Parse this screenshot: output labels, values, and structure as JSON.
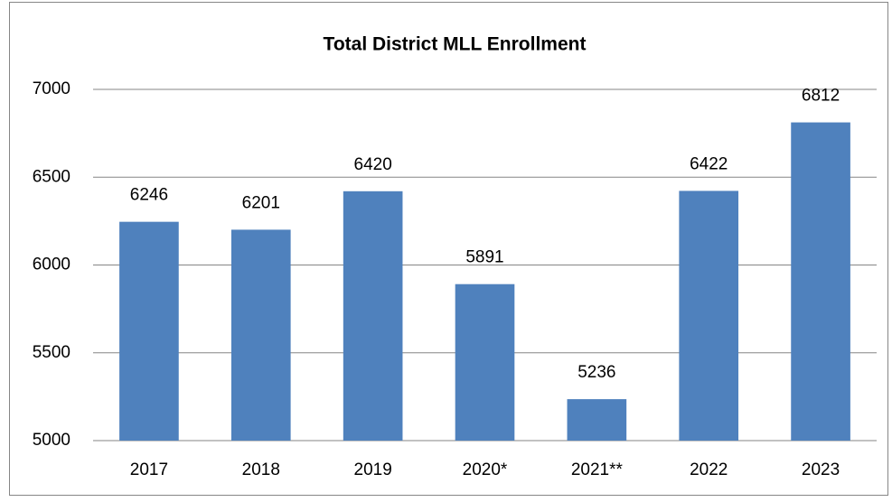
{
  "chart_data": {
    "type": "bar",
    "title": "Total District MLL Enrollment",
    "categories": [
      "2017",
      "2018",
      "2019",
      "2020*",
      "2021**",
      "2022",
      "2023"
    ],
    "values": [
      6246,
      6201,
      6420,
      5891,
      5236,
      6422,
      6812
    ],
    "color": "#4f81bd",
    "ylim": [
      5000,
      7000
    ],
    "yticks": [
      5000,
      5500,
      6000,
      6500,
      7000
    ],
    "grid": true
  }
}
